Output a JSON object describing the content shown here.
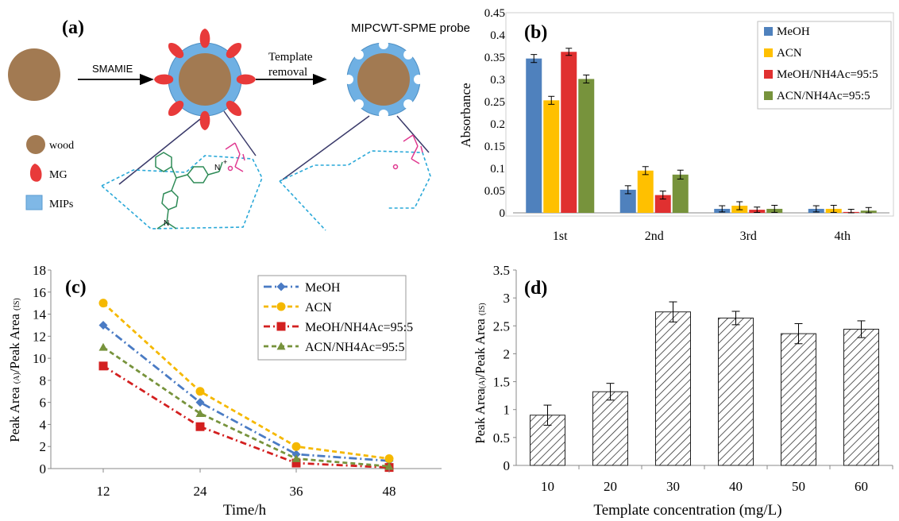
{
  "panel_a": {
    "panel_label": "(a)",
    "probe_title": "MIPCWT-SPME probe",
    "step1": "SMAMIE",
    "step2_line1": "Template",
    "step2_line2": "removal",
    "legend": [
      {
        "label": "wood",
        "icon": "wood-circle",
        "color": "#a27a52"
      },
      {
        "label": "MG",
        "icon": "mg-drop",
        "color": "#e83a3a"
      },
      {
        "label": "MIPs",
        "icon": "mips-square",
        "color": "#7fb8e6"
      }
    ],
    "chem_labels": {
      "n_plus": "N",
      "plus": "+",
      "n": "N",
      "o": "O"
    }
  },
  "panel_b": {
    "panel_label": "(b)",
    "chart_data": {
      "type": "bar",
      "ylabel": "Absorbance",
      "xlabel": "",
      "ylim": [
        0,
        0.45
      ],
      "yticks": [
        "0",
        "0.05",
        "0.1",
        "0.15",
        "0.2",
        "0.25",
        "0.3",
        "0.35",
        "0.4",
        "0.45"
      ],
      "categories": [
        "1st",
        "2nd",
        "3rd",
        "4th"
      ],
      "legend_position": "top-right",
      "series": [
        {
          "name": "MeOH",
          "color": "#4f81bd",
          "values": [
            0.347,
            0.052,
            0.009,
            0.009
          ],
          "errors": [
            0.009,
            0.009,
            0.007,
            0.007
          ]
        },
        {
          "name": "ACN",
          "color": "#ffc000",
          "values": [
            0.253,
            0.095,
            0.016,
            0.009
          ],
          "errors": [
            0.009,
            0.009,
            0.009,
            0.008
          ]
        },
        {
          "name": "MeOH/NH4Ac=95:5",
          "color": "#e03030",
          "values": [
            0.362,
            0.04,
            0.007,
            0.002
          ],
          "errors": [
            0.008,
            0.009,
            0.006,
            0.006
          ]
        },
        {
          "name": "ACN/NH4Ac=95:5",
          "color": "#77933c",
          "values": [
            0.301,
            0.086,
            0.009,
            0.005
          ],
          "errors": [
            0.009,
            0.01,
            0.008,
            0.007
          ]
        }
      ]
    }
  },
  "panel_c": {
    "panel_label": "(c)",
    "chart_data": {
      "type": "line",
      "xlabel": "Time/h",
      "ylabel_parts": [
        "Peak Area ",
        "(A)",
        "/Peak Area ",
        "(IS)"
      ],
      "ylim": [
        0,
        18
      ],
      "yticks": [
        "0",
        "2",
        "4",
        "6",
        "8",
        "10",
        "12",
        "14",
        "16",
        "18"
      ],
      "x": [
        "12",
        "24",
        "36",
        "48"
      ],
      "legend_position": "top-right",
      "series": [
        {
          "name": "MeOH",
          "color": "#4a7bc4",
          "marker": "diamond",
          "dash": "10,4,2,4",
          "values": [
            13.0,
            6.0,
            1.3,
            0.7
          ]
        },
        {
          "name": "ACN",
          "color": "#f5b800",
          "marker": "circle",
          "dash": "6,4",
          "values": [
            15.0,
            7.0,
            2.0,
            0.9
          ]
        },
        {
          "name": "MeOH/NH4Ac=95:5",
          "color": "#d32020",
          "marker": "square",
          "dash": "8,4,2,4",
          "values": [
            9.3,
            3.8,
            0.5,
            0.1
          ]
        },
        {
          "name": "ACN/NH4Ac=95:5",
          "color": "#77933c",
          "marker": "triangle",
          "dash": "6,4",
          "values": [
            11.0,
            5.0,
            0.9,
            0.2
          ]
        }
      ]
    }
  },
  "panel_d": {
    "panel_label": "(d)",
    "chart_data": {
      "type": "bar",
      "xlabel": "Template concentration (mg/L)",
      "ylabel_parts": [
        "Peak Area",
        "(A)",
        "/Peak Area ",
        "(IS)"
      ],
      "ylim": [
        0,
        3.5
      ],
      "yticks": [
        "0",
        "0.5",
        "1",
        "1.5",
        "2",
        "2.5",
        "3",
        "3.5"
      ],
      "categories": [
        "10",
        "20",
        "30",
        "40",
        "50",
        "60"
      ],
      "values": [
        0.9,
        1.32,
        2.75,
        2.64,
        2.36,
        2.44
      ],
      "errors": [
        0.18,
        0.15,
        0.18,
        0.12,
        0.18,
        0.15
      ],
      "pattern": "diagonal-hatch"
    }
  }
}
